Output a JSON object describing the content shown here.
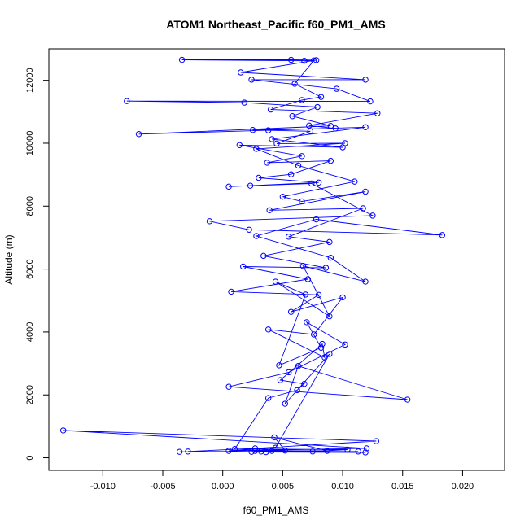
{
  "chart_data": {
    "type": "line",
    "title": "ATOM1 Northeast_Pacific f60_PM1_AMS",
    "xlabel": "f60_PM1_AMS",
    "ylabel": "Altitude (m)",
    "xlim": [
      -0.0145,
      0.0235
    ],
    "ylim": [
      -400,
      13000
    ],
    "x_ticks": [
      -0.01,
      -0.005,
      0.0,
      0.005,
      0.01,
      0.015,
      0.02
    ],
    "x_tick_labels": [
      "-0.010",
      "-0.005",
      "0.000",
      "0.005",
      "0.010",
      "0.015",
      "0.020"
    ],
    "y_ticks": [
      0,
      2000,
      4000,
      6000,
      8000,
      10000,
      12000
    ],
    "y_tick_labels": [
      "0",
      "2000",
      "4000",
      "6000",
      "8000",
      "10000",
      "12000"
    ],
    "grid": false,
    "series_color": "#0000ff",
    "marker": "open-circle",
    "series": [
      {
        "points": [
          [
            0.0113,
            200
          ],
          [
            0.0032,
            200
          ],
          [
            -0.0029,
            200
          ],
          [
            0.0027,
            300
          ],
          [
            0.0128,
            530
          ],
          [
            -0.0133,
            870
          ],
          [
            0.012,
            300
          ],
          [
            0.0005,
            220
          ],
          [
            0.0044,
            320
          ],
          [
            0.0089,
            3300
          ],
          [
            0.0052,
            1720
          ],
          [
            0.0063,
            2920
          ],
          [
            0.0154,
            1850
          ],
          [
            0.0005,
            2260
          ],
          [
            0.0055,
            2720
          ],
          [
            0.0102,
            3600
          ],
          [
            0.007,
            4310
          ],
          [
            0.0082,
            3500
          ],
          [
            0.0047,
            2940
          ],
          [
            0.0069,
            5190
          ],
          [
            0.0044,
            5600
          ],
          [
            0.0089,
            4500
          ],
          [
            0.0067,
            6100
          ],
          [
            0.0119,
            5600
          ],
          [
            0.009,
            6360
          ],
          [
            0.0028,
            7050
          ],
          [
            0.0078,
            7580
          ],
          [
            0.0183,
            7080
          ],
          [
            0.0022,
            7250
          ],
          [
            -0.0011,
            7520
          ],
          [
            0.0125,
            7700
          ],
          [
            0.0074,
            8720
          ],
          [
            0.0023,
            8650
          ],
          [
            0.0005,
            8620
          ],
          [
            0.008,
            8750
          ],
          [
            0.003,
            8900
          ],
          [
            0.0057,
            9010
          ],
          [
            0.009,
            9440
          ],
          [
            0.0037,
            9380
          ],
          [
            0.0066,
            9590
          ],
          [
            0.0014,
            9940
          ],
          [
            0.01,
            9870
          ],
          [
            0.0041,
            10130
          ],
          [
            0.0119,
            10510
          ],
          [
            0.0038,
            10410
          ],
          [
            -0.007,
            10290
          ],
          [
            0.009,
            10550
          ],
          [
            0.0058,
            10860
          ],
          [
            0.0079,
            11150
          ],
          [
            0.0018,
            11290
          ],
          [
            -0.008,
            11340
          ],
          [
            0.0123,
            11330
          ],
          [
            0.0095,
            11730
          ],
          [
            0.0024,
            12020
          ],
          [
            0.0119,
            12020
          ],
          [
            0.0015,
            12250
          ],
          [
            0.0078,
            12640
          ],
          [
            0.0057,
            12650
          ],
          [
            -0.0034,
            12650
          ],
          [
            0.0068,
            12620
          ],
          [
            0.0076,
            12630
          ],
          [
            0.006,
            11890
          ],
          [
            0.0082,
            11470
          ],
          [
            0.0066,
            11370
          ],
          [
            0.004,
            11070
          ],
          [
            0.0129,
            10950
          ],
          [
            0.0072,
            10560
          ],
          [
            0.0094,
            10470
          ],
          [
            0.0025,
            10420
          ],
          [
            0.0073,
            10380
          ],
          [
            0.0045,
            9990
          ],
          [
            0.0102,
            10000
          ],
          [
            0.0028,
            9820
          ],
          [
            0.0063,
            9290
          ],
          [
            0.011,
            8780
          ],
          [
            0.005,
            8300
          ],
          [
            0.0066,
            8150
          ],
          [
            0.0119,
            8460
          ],
          [
            0.0039,
            7870
          ],
          [
            0.0117,
            7930
          ],
          [
            0.0055,
            7030
          ],
          [
            0.0089,
            6860
          ],
          [
            0.0034,
            6420
          ],
          [
            0.0086,
            6040
          ],
          [
            0.0017,
            6080
          ],
          [
            0.0071,
            5680
          ],
          [
            0.0007,
            5280
          ],
          [
            0.008,
            5180
          ],
          [
            0.0057,
            4640
          ],
          [
            0.01,
            5100
          ],
          [
            0.0076,
            3920
          ],
          [
            0.0038,
            4080
          ],
          [
            0.0085,
            3190
          ],
          [
            0.0083,
            3620
          ],
          [
            0.0048,
            2470
          ],
          [
            0.0068,
            2350
          ],
          [
            0.0062,
            2150
          ],
          [
            0.0038,
            1900
          ],
          [
            0.001,
            280
          ],
          [
            0.0104,
            260
          ],
          [
            0.0075,
            200
          ],
          [
            0.0119,
            170
          ],
          [
            -0.0036,
            190
          ],
          [
            0.0024,
            190
          ],
          [
            0.0041,
            220
          ],
          [
            0.0052,
            230
          ],
          [
            0.0043,
            650
          ],
          [
            0.0087,
            220
          ],
          [
            0.0027,
            220
          ],
          [
            0.0036,
            180
          ]
        ]
      }
    ]
  }
}
